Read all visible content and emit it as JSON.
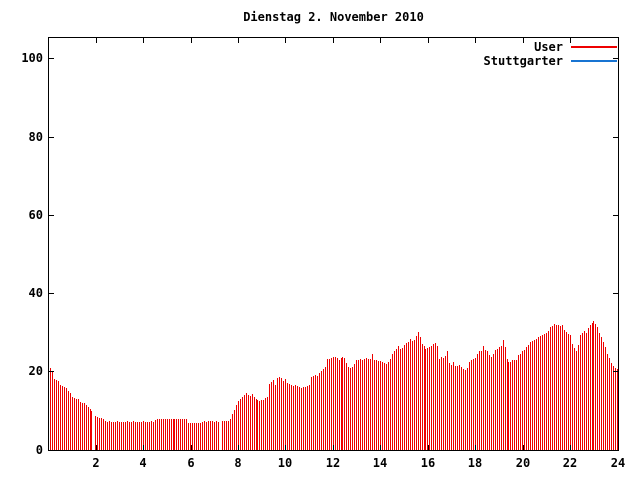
{
  "title": "Dienstag 2. November 2010",
  "colors": {
    "user_red": "#ee0000",
    "stuttgarter_blue": "#1874d2",
    "axis_black": "#000000",
    "background": "#ffffff"
  },
  "legend": {
    "position": "top-right-inside",
    "items": [
      {
        "label": "User",
        "color": "#ee0000"
      },
      {
        "label": "Stuttgarter",
        "color": "#1874d2"
      }
    ]
  },
  "axes": {
    "x_tick_labels": [
      "2",
      "4",
      "6",
      "8",
      "10",
      "12",
      "14",
      "16",
      "18",
      "20",
      "22",
      "24"
    ],
    "y_tick_labels": [
      "0",
      "20",
      "40",
      "60",
      "80",
      "100"
    ]
  },
  "chart_data": {
    "type": "bar",
    "style": "impulses",
    "title": "Dienstag 2. November 2010",
    "xlabel": "",
    "ylabel": "",
    "xlim": [
      0,
      24
    ],
    "ylim": [
      0,
      105
    ],
    "grid": false,
    "legend_position": "top-right",
    "x_unit": "hour of day",
    "sample_interval_minutes": 5,
    "x_ticks": [
      2,
      4,
      6,
      8,
      10,
      12,
      14,
      16,
      18,
      20,
      22,
      24
    ],
    "y_ticks": [
      0,
      20,
      40,
      60,
      80,
      100
    ],
    "series": [
      {
        "name": "User",
        "color": "#ee0000",
        "x_start_hour": 0.0833,
        "x_step_hours": 0.0833,
        "values": [
          21.0,
          20.3,
          18.2,
          18.0,
          17.6,
          16.6,
          16.4,
          16.0,
          15.9,
          15.0,
          14.6,
          13.6,
          13.4,
          13.1,
          13.0,
          12.4,
          12.1,
          11.9,
          11.4,
          10.9,
          10.4,
          9.9,
          0,
          8.6,
          8.4,
          8.3,
          8.1,
          7.9,
          7.4,
          7.2,
          7.3,
          7.2,
          7.1,
          7.2,
          7.3,
          7.2,
          7.1,
          7.2,
          7.2,
          7.3,
          7.1,
          7.2,
          7.3,
          7.2,
          7.1,
          7.2,
          7.2,
          7.3,
          7.2,
          7.1,
          7.2,
          7.3,
          7.2,
          7.6,
          7.9,
          8.0,
          7.9,
          7.8,
          8.0,
          7.9,
          7.9,
          8.0,
          7.9,
          8.0,
          8.0,
          7.9,
          7.8,
          7.9,
          8.0,
          7.9,
          7.0,
          6.9,
          6.8,
          6.9,
          6.8,
          6.9,
          7.0,
          7.2,
          7.3,
          7.2,
          7.3,
          7.4,
          7.3,
          7.2,
          7.3,
          7.2,
          0,
          7.4,
          7.4,
          7.3,
          7.4,
          8.0,
          9.1,
          10.2,
          11.4,
          12.6,
          13.1,
          13.6,
          14.1,
          14.5,
          14.0,
          13.8,
          14.2,
          13.6,
          13.1,
          12.9,
          12.6,
          12.7,
          12.8,
          13.2,
          13.5,
          17.0,
          17.5,
          17.8,
          16.6,
          18.3,
          18.6,
          18.4,
          17.6,
          18.2,
          17.1,
          16.9,
          16.6,
          16.4,
          16.6,
          16.3,
          16.0,
          15.9,
          16.2,
          16.0,
          16.3,
          16.6,
          18.6,
          19.0,
          19.3,
          18.9,
          19.6,
          20.3,
          20.7,
          21.1,
          23.2,
          23.3,
          23.5,
          23.9,
          23.8,
          23.4,
          23.0,
          23.6,
          23.7,
          23.4,
          22.3,
          21.1,
          20.9,
          21.3,
          21.9,
          22.9,
          23.1,
          23.3,
          23.0,
          23.3,
          23.4,
          23.2,
          23.3,
          24.6,
          23.1,
          22.9,
          22.7,
          22.8,
          22.5,
          22.2,
          22.0,
          22.4,
          23.2,
          24.6,
          25.4,
          25.9,
          26.7,
          25.9,
          26.2,
          26.9,
          27.3,
          27.5,
          28.4,
          27.8,
          28.2,
          29.2,
          30.1,
          28.8,
          27.0,
          26.7,
          25.7,
          26.0,
          26.4,
          26.7,
          27.2,
          27.4,
          26.7,
          23.2,
          23.7,
          23.5,
          24.0,
          25.4,
          22.3,
          21.8,
          22.5,
          21.6,
          21.4,
          21.8,
          21.2,
          20.6,
          20.4,
          20.9,
          22.4,
          22.9,
          23.3,
          23.6,
          24.6,
          25.2,
          25.4,
          26.7,
          25.6,
          25.2,
          24.3,
          23.8,
          24.6,
          25.5,
          25.9,
          26.3,
          26.7,
          28.0,
          26.3,
          23.3,
          22.6,
          22.4,
          23.0,
          22.9,
          23.0,
          24.2,
          24.6,
          25.2,
          25.6,
          26.3,
          26.9,
          27.5,
          27.8,
          28.0,
          28.3,
          28.9,
          29.1,
          29.3,
          29.6,
          30.0,
          30.3,
          31.4,
          31.8,
          32.2,
          32.0,
          31.9,
          31.8,
          31.9,
          30.8,
          30.2,
          29.6,
          29.3,
          27.2,
          26.2,
          25.4,
          26.8,
          29.3,
          29.8,
          30.4,
          30.0,
          31.2,
          32.0,
          32.5,
          33.0,
          32.3,
          31.5,
          29.8,
          29.0,
          27.5,
          26.3,
          24.5,
          23.5,
          22.3,
          21.6,
          21.0,
          20.8
        ]
      },
      {
        "name": "Stuttgarter",
        "color": "#1874d2",
        "values": []
      }
    ]
  }
}
